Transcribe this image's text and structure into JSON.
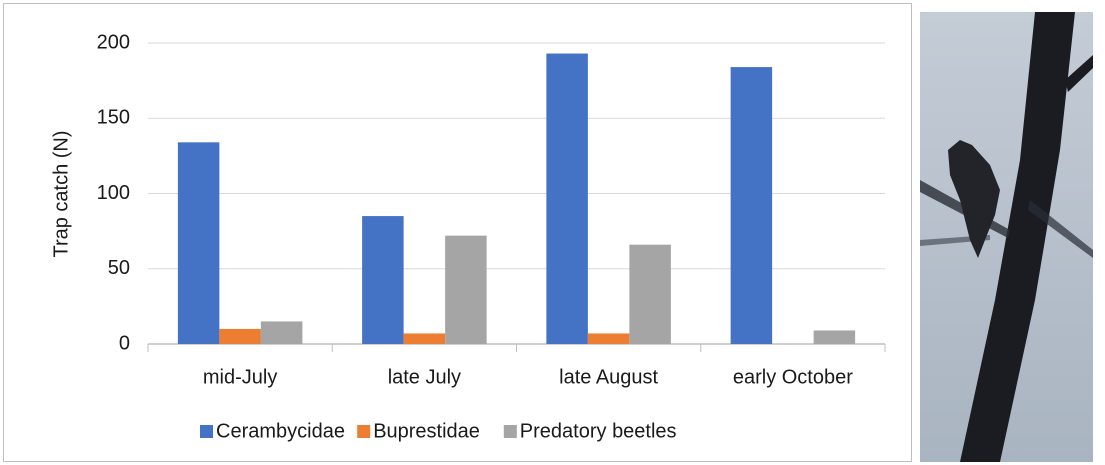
{
  "chart_data": {
    "type": "bar",
    "y_label": "Trap catch (N)",
    "categories": [
      "mid-July",
      "late July",
      "late August",
      "early October"
    ],
    "series": [
      {
        "name": "Cerambycidae",
        "color": "#4472c4",
        "values": [
          134,
          85,
          193,
          184
        ]
      },
      {
        "name": "Buprestidae",
        "color": "#ed7d31",
        "values": [
          10,
          7,
          7,
          0
        ]
      },
      {
        "name": "Predatory beetles",
        "color": "#a5a5a5",
        "values": [
          15,
          72,
          66,
          9
        ]
      }
    ],
    "ylim": [
      0,
      200
    ],
    "yticks": [
      0,
      50,
      100,
      150,
      200
    ],
    "grid": true,
    "legend": "bottom"
  }
}
